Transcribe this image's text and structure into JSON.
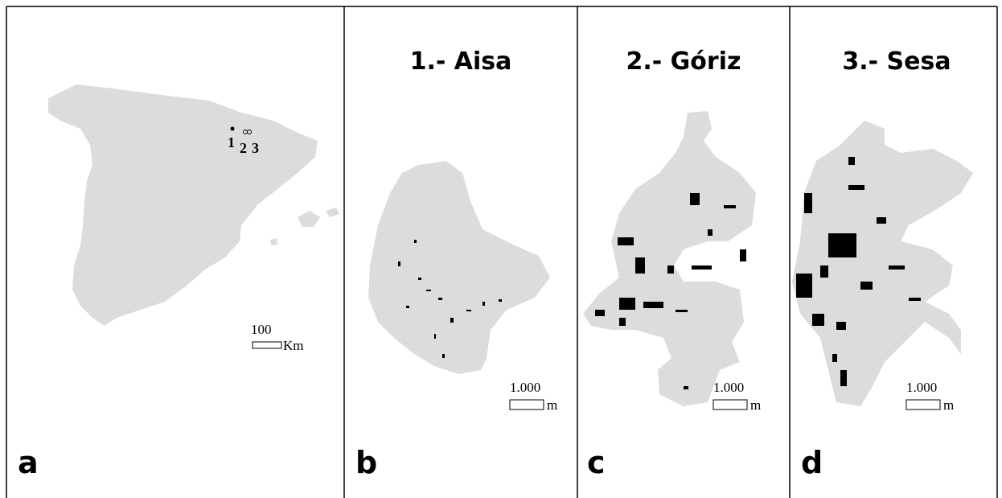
{
  "panels": [
    {
      "letter": "a",
      "markers": [
        "1",
        "2",
        "3"
      ],
      "scale_value": "100",
      "scale_unit": "Km"
    },
    {
      "letter": "b",
      "title": "1.- Aisa",
      "scale_value": "1.000",
      "scale_unit": "m"
    },
    {
      "letter": "c",
      "title": "2.- Góriz",
      "scale_value": "1.000",
      "scale_unit": "m"
    },
    {
      "letter": "d",
      "title": "3.- Sesa",
      "scale_value": "1.000",
      "scale_unit": "m"
    }
  ]
}
